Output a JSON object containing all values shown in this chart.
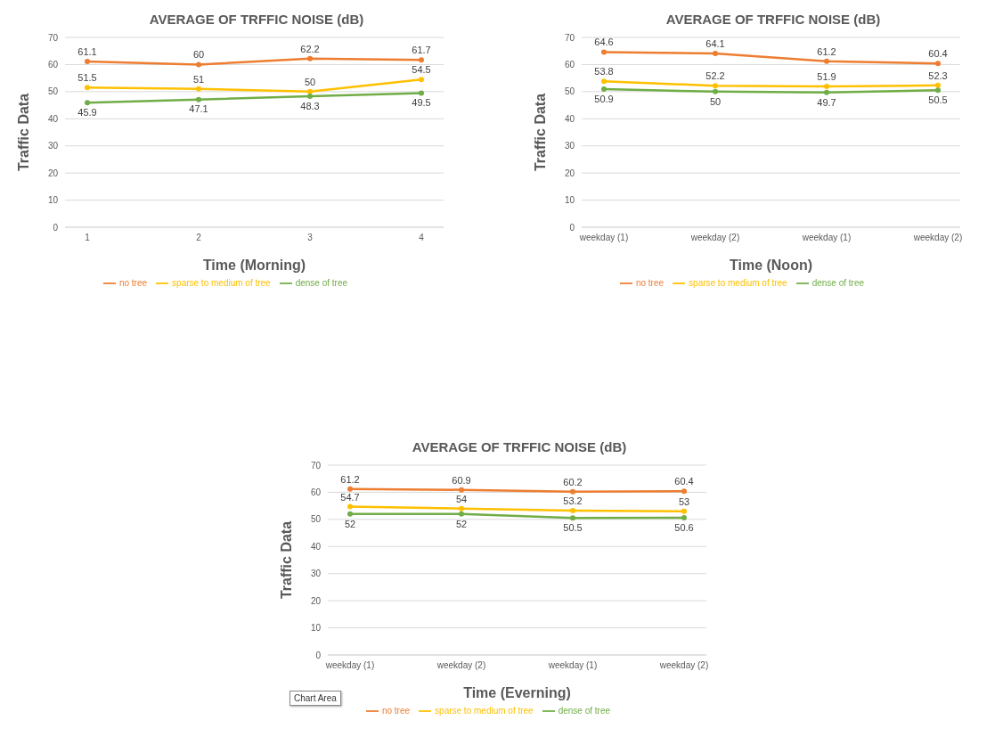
{
  "chart_data": [
    {
      "type": "line",
      "title": "AVERAGE OF TRFFIC NOISE (dB)",
      "xlabel": "Time (Morning)",
      "ylabel": "Traffic Data",
      "categories": [
        "1",
        "2",
        "3",
        "4"
      ],
      "ylim": [
        0,
        70
      ],
      "yticks": [
        0,
        10,
        20,
        30,
        40,
        50,
        60,
        70
      ],
      "grid": "y",
      "legend": "bottom",
      "marker": "circle",
      "data_labels": true,
      "series": [
        {
          "name": "no tree",
          "color": "#ed7d31",
          "values": [
            61.1,
            60,
            62.2,
            61.7
          ]
        },
        {
          "name": "sparse to medium of tree",
          "color": "#ffc000",
          "values": [
            51.5,
            51,
            50,
            54.5
          ]
        },
        {
          "name": "dense of tree",
          "color": "#70ad47",
          "values": [
            45.9,
            47.1,
            48.3,
            49.5
          ]
        }
      ]
    },
    {
      "type": "line",
      "title": "AVERAGE OF TRFFIC NOISE (dB)",
      "xlabel": "Time (Noon)",
      "ylabel": "Traffic Data",
      "categories": [
        "weekday (1)",
        "weekday (2)",
        "weekday (1)",
        "weekday (2)"
      ],
      "ylim": [
        0,
        70
      ],
      "yticks": [
        0,
        10,
        20,
        30,
        40,
        50,
        60,
        70
      ],
      "grid": "y",
      "legend": "bottom",
      "marker": "circle",
      "data_labels": true,
      "series": [
        {
          "name": "no tree",
          "color": "#ed7d31",
          "values": [
            64.6,
            64.1,
            61.2,
            60.4
          ]
        },
        {
          "name": "sparse to medium of tree",
          "color": "#ffc000",
          "values": [
            53.8,
            52.2,
            51.9,
            52.3
          ]
        },
        {
          "name": "dense of tree",
          "color": "#70ad47",
          "values": [
            50.9,
            50,
            49.7,
            50.5
          ]
        }
      ]
    },
    {
      "type": "line",
      "title": "AVERAGE OF TRFFIC NOISE (dB)",
      "xlabel": "Time (Everning)",
      "ylabel": "Traffic Data",
      "categories": [
        "weekday (1)",
        "weekday (2)",
        "weekday (1)",
        "weekday (2)"
      ],
      "ylim": [
        0,
        70
      ],
      "yticks": [
        0,
        10,
        20,
        30,
        40,
        50,
        60,
        70
      ],
      "grid": "y",
      "legend": "bottom",
      "marker": "circle",
      "data_labels": true,
      "annotations": [
        "Chart Area"
      ],
      "series": [
        {
          "name": "no tree",
          "color": "#ed7d31",
          "values": [
            61.2,
            60.9,
            60.2,
            60.4
          ]
        },
        {
          "name": "sparse to medium of tree",
          "color": "#ffc000",
          "values": [
            54.7,
            54,
            53.2,
            53
          ]
        },
        {
          "name": "dense of tree",
          "color": "#70ad47",
          "values": [
            52,
            52,
            50.5,
            50.6
          ]
        }
      ]
    }
  ]
}
